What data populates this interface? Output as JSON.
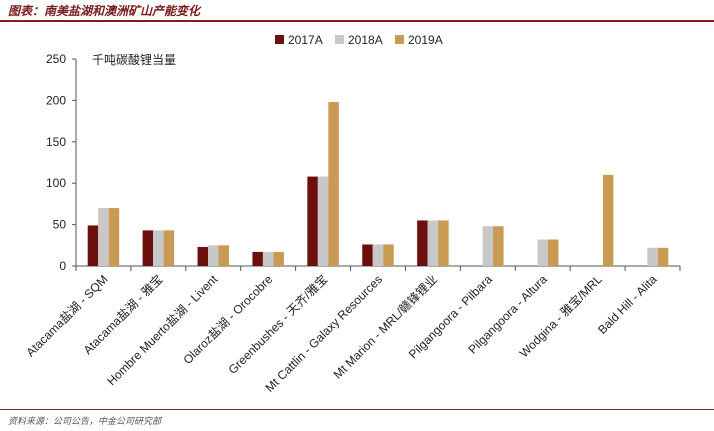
{
  "figure": {
    "title": "图表：南美盐湖和澳洲矿山产能变化",
    "source": "资料来源：公司公告，中金公司研究部"
  },
  "chart_data": {
    "type": "bar",
    "ylabel": "千吨碳酸锂当量",
    "ylim": [
      0,
      250
    ],
    "yticks": [
      0,
      50,
      100,
      150,
      200,
      250
    ],
    "categories": [
      "Atacama盐湖 - SQM",
      "Atacama盐湖 - 雅宝",
      "Hombre Muerto盐湖 - Livent",
      "Olaroz盐湖 - Orocobre",
      "Greenbushes - 天齐/雅宝",
      "Mt Cattlin - Galaxy Resources",
      "Mt Marion - MRL/赣锋锂业",
      "Pilgangoora - Pilbara",
      "Pilgangoora - Altura",
      "Wodgina - 雅宝/MRL",
      "Bald Hill - Alita"
    ],
    "series": [
      {
        "name": "2017A",
        "color": "#6b0f0f",
        "values": [
          49,
          43,
          23,
          17,
          108,
          26,
          55,
          0,
          0,
          0,
          0
        ]
      },
      {
        "name": "2018A",
        "color": "#c8c8c8",
        "values": [
          70,
          43,
          25,
          17,
          108,
          26,
          55,
          48,
          32,
          0,
          22
        ]
      },
      {
        "name": "2019A",
        "color": "#c89a52",
        "values": [
          70,
          43,
          25,
          17,
          198,
          26,
          55,
          48,
          32,
          110,
          22
        ]
      }
    ],
    "legend_position": "top-center",
    "grid": false
  }
}
